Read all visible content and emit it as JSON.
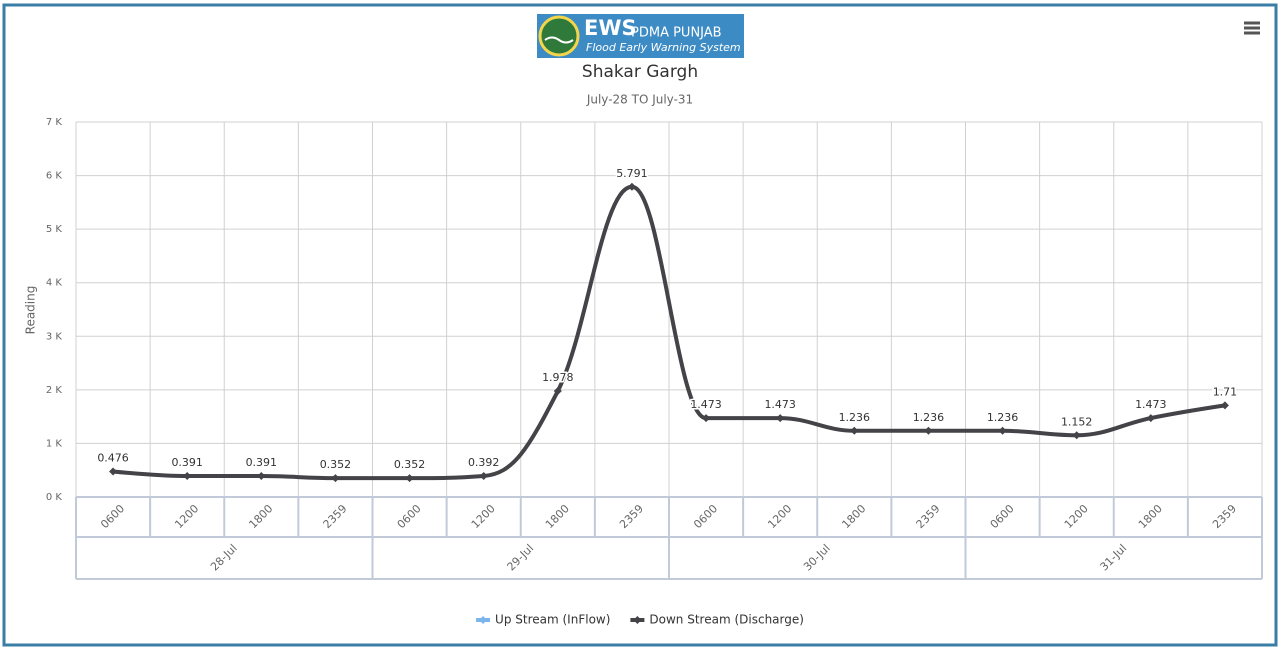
{
  "logo": {
    "title": "EWS",
    "org": "PDMA PUNJAB",
    "tagline": "Flood Early Warning System"
  },
  "chart_data": {
    "type": "line",
    "title": "Shakar Gargh",
    "subtitle": "July-28 TO July-31",
    "y_label": "Reading",
    "groups": [
      {
        "name": "28-Jul",
        "categories": [
          "0600",
          "1200",
          "1800",
          "2359"
        ]
      },
      {
        "name": "29-Jul",
        "categories": [
          "0600",
          "1200",
          "1800",
          "2359"
        ]
      },
      {
        "name": "30-Jul",
        "categories": [
          "0600",
          "1200",
          "1800",
          "2359"
        ]
      },
      {
        "name": "31-Jul",
        "categories": [
          "0600",
          "1200",
          "1800",
          "2359"
        ]
      }
    ],
    "series": [
      {
        "name": "Up Stream (InFlow)",
        "color": "#7cb5ec",
        "values": [
          null,
          null,
          null,
          null,
          null,
          null,
          null,
          null,
          null,
          null,
          null,
          null,
          null,
          null,
          null,
          null
        ]
      },
      {
        "name": "Down Stream (Discharge)",
        "color": "#434348",
        "values": [
          0.476,
          0.391,
          0.391,
          0.352,
          0.352,
          0.392,
          1.978,
          5.791,
          1.473,
          1.473,
          1.236,
          1.236,
          1.236,
          1.152,
          1.473,
          1.71
        ]
      }
    ],
    "ylim": [
      0,
      7
    ],
    "yticks": [
      {
        "value": 0,
        "label": "0 K"
      },
      {
        "value": 1,
        "label": "1 K"
      },
      {
        "value": 2,
        "label": "2 K"
      },
      {
        "value": 3,
        "label": "3 K"
      },
      {
        "value": 4,
        "label": "4 K"
      },
      {
        "value": 5,
        "label": "5 K"
      },
      {
        "value": 6,
        "label": "6 K"
      },
      {
        "value": 7,
        "label": "7 K"
      }
    ],
    "grid": true,
    "legend": "bottom"
  }
}
